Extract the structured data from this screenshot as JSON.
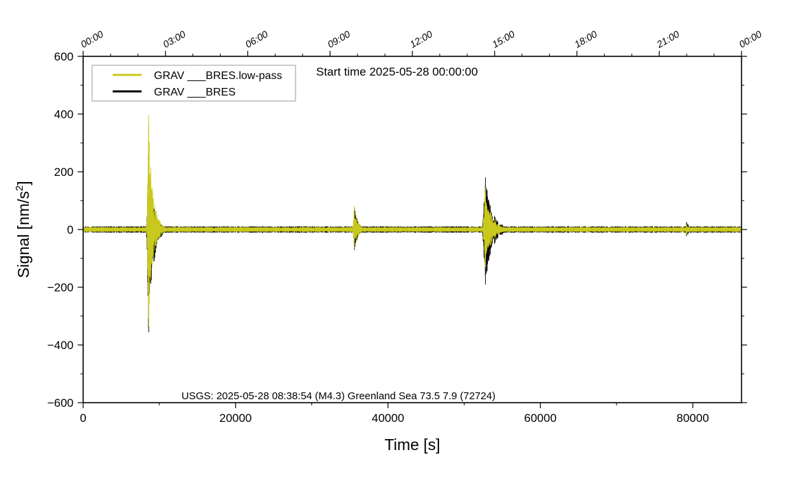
{
  "chart_data": {
    "type": "line",
    "xlabel": "Time [s]",
    "ylabel": "Signal [nm/s",
    "ylabel_sup": "2",
    "ylabel_end": "]",
    "xlim": [
      0,
      86400
    ],
    "ylim": [
      -600,
      600
    ],
    "x_ticks": [
      0,
      20000,
      40000,
      60000,
      80000
    ],
    "x_tick_labels": [
      "0",
      "20000",
      "40000",
      "60000",
      "80000"
    ],
    "y_ticks": [
      600,
      400,
      200,
      0,
      -200,
      -400,
      -600
    ],
    "y_tick_labels": [
      "600",
      "400",
      "200",
      "0",
      "−200",
      "−400",
      "−600"
    ],
    "top_axis": {
      "ticks": [
        0,
        10800,
        21600,
        32400,
        43200,
        54000,
        64800,
        75600,
        86400
      ],
      "labels": [
        "00:00",
        "03:00",
        "06:00",
        "09:00",
        "12:00",
        "15:00",
        "18:00",
        "21:00",
        "00:00"
      ]
    },
    "annotation": "Start time 2025-05-28 00:00:00",
    "caption": "USGS: 2025-05-28 08:38:54 (M4.3) Greenland Sea 73.5 7.9 (72724)",
    "legend_position": "top-left",
    "grid": false,
    "series": [
      {
        "name": "GRAV ___BRES",
        "color": "#000000",
        "baseline_amplitude": 8,
        "events": [
          {
            "t": 8600,
            "peak_max": 230,
            "peak_min": -355,
            "duration": 2200
          },
          {
            "t": 35600,
            "peak_max": 75,
            "peak_min": -70,
            "duration": 1800
          },
          {
            "t": 52800,
            "peak_max": 180,
            "peak_min": -190,
            "duration": 3200
          },
          {
            "t": 79200,
            "peak_max": 25,
            "peak_min": -22,
            "duration": 1500
          }
        ]
      },
      {
        "name": "GRAV ___BRES.low-pass",
        "color": "#c8c81e",
        "baseline_amplitude": 6,
        "events": [
          {
            "t": 8600,
            "peak_max": 395,
            "peak_min": -335,
            "duration": 2000
          },
          {
            "t": 35600,
            "peak_max": 80,
            "peak_min": -65,
            "duration": 1700
          },
          {
            "t": 52800,
            "peak_max": 145,
            "peak_min": -130,
            "duration": 3000
          },
          {
            "t": 79200,
            "peak_max": 18,
            "peak_min": -18,
            "duration": 1400
          }
        ]
      }
    ]
  }
}
